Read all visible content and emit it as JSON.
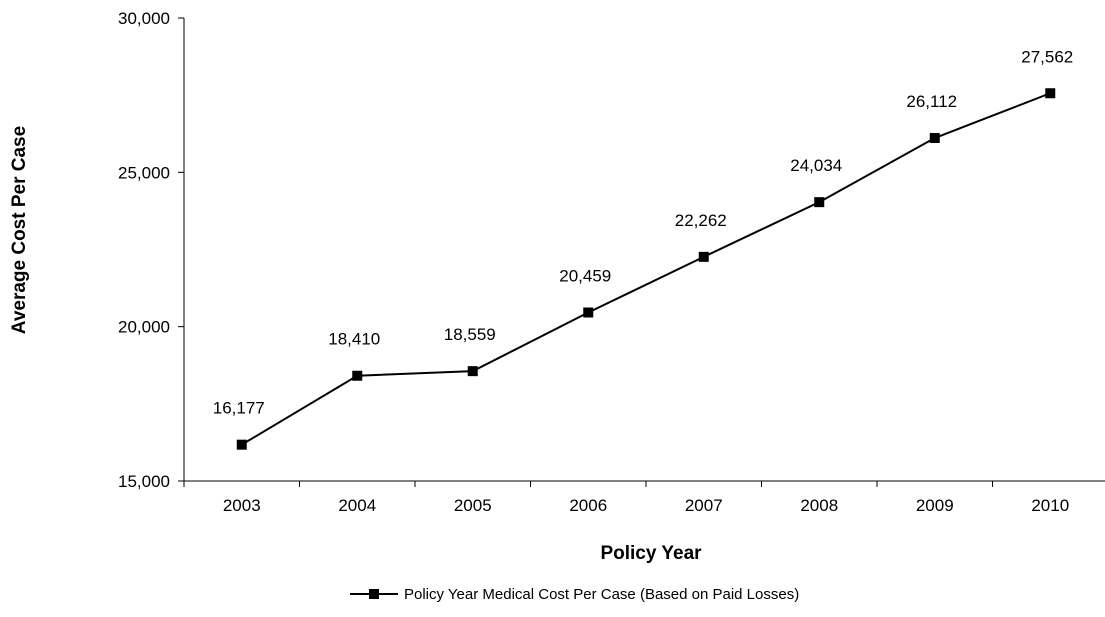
{
  "chart_data": {
    "type": "line",
    "xlabel": "Policy Year",
    "ylabel": "Average Cost Per Case",
    "categories": [
      "2003",
      "2004",
      "2005",
      "2006",
      "2007",
      "2008",
      "2009",
      "2010"
    ],
    "ylim": [
      15000,
      30000
    ],
    "yticks": [
      15000,
      20000,
      25000,
      30000
    ],
    "ytick_labels": [
      "15,000",
      "20,000",
      "25,000",
      "30,000"
    ],
    "series": [
      {
        "name": "Policy Year Medical Cost Per Case (Based on Paid Losses)",
        "values": [
          16177,
          18410,
          18559,
          20459,
          22262,
          24034,
          26112,
          27562
        ],
        "labels": [
          "16,177",
          "18,410",
          "18,559",
          "20,459",
          "22,262",
          "24,034",
          "26,112",
          "27,562"
        ],
        "color": "#000000",
        "marker": "square"
      }
    ],
    "grid": false,
    "legend_position": "bottom"
  }
}
